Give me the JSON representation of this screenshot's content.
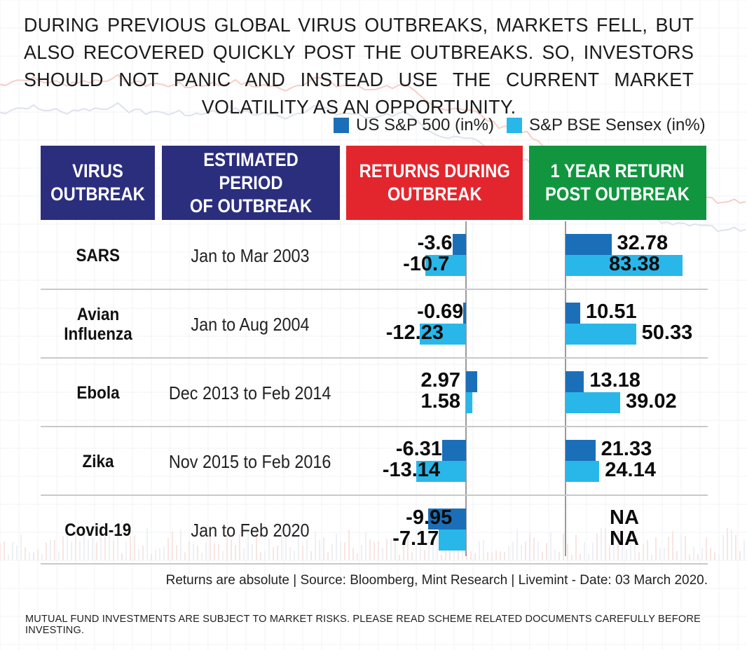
{
  "headline": "DURING PREVIOUS GLOBAL VIRUS OUTBREAKS, MARKETS FELL, BUT ALSO RECOVERED QUICKLY POST THE OUTBREAKS. SO, INVESTORS SHOULD NOT PANIC AND INSTEAD USE THE CURRENT MARKET VOLATILITY AS AN OPPORTUNITY.",
  "legend": {
    "us": {
      "label": "US S&P 500 (in%)",
      "color": "#1b6fb8"
    },
    "bse": {
      "label": "S&P BSE Sensex (in%)",
      "color": "#29b7ea"
    }
  },
  "headers": {
    "virus": {
      "line1": "VIRUS",
      "line2": "OUTBREAK",
      "color": "#2b2e7d"
    },
    "period": {
      "line1": "ESTIMATED PERIOD",
      "line2": "OF OUTBREAK",
      "color": "#2b2e7d"
    },
    "returns": {
      "line1": "RETURNS DURING",
      "line2": "OUTBREAK",
      "color": "#e3262d"
    },
    "post": {
      "line1": "1 YEAR RETURN",
      "line2": "POST OUTBREAK",
      "color": "#11963f"
    }
  },
  "chart_data": {
    "type": "bar",
    "categories": [
      "SARS",
      "Avian Influenza",
      "Ebola",
      "Zika",
      "Covid-19"
    ],
    "periods": [
      "Jan to Mar 2003",
      "Jan to Aug 2004",
      "Dec 2013 to Feb 2014",
      "Nov 2015 to Feb 2016",
      "Jan to Feb 2020"
    ],
    "series": [
      {
        "name": "US S&P 500 (in%)",
        "group": "RETURNS DURING OUTBREAK",
        "values": [
          -3.6,
          -0.69,
          2.97,
          -6.31,
          -9.95
        ]
      },
      {
        "name": "S&P BSE Sensex (in%)",
        "group": "RETURNS DURING OUTBREAK",
        "values": [
          -10.7,
          -12.23,
          1.58,
          -13.14,
          -7.17
        ]
      },
      {
        "name": "US S&P 500 (in%)",
        "group": "1 YEAR RETURN POST OUTBREAK",
        "values": [
          32.78,
          10.51,
          13.18,
          21.33,
          null
        ]
      },
      {
        "name": "S&P BSE Sensex (in%)",
        "group": "1 YEAR RETURN POST OUTBREAK",
        "values": [
          83.38,
          50.33,
          39.02,
          24.14,
          null
        ]
      }
    ],
    "labels": {
      "during_us": [
        "-3.6",
        "-0.69",
        "2.97",
        "-6.31",
        "-9.95"
      ],
      "during_bse": [
        "-10.7",
        "-12.23",
        "1.58",
        "-13.14",
        "-7.17"
      ],
      "post_us": [
        "32.78",
        "10.51",
        "13.18",
        "21.33",
        "NA"
      ],
      "post_bse": [
        "83.38",
        "50.33",
        "39.02",
        "24.14",
        "NA"
      ]
    }
  },
  "footnote": "Returns are absolute | Source: Bloomberg, Mint Research | Livemint - Date: 03 March 2020.",
  "disclaimer": "MUTUAL FUND INVESTMENTS ARE SUBJECT TO MARKET RISKS. PLEASE READ SCHEME RELATED DOCUMENTS CAREFULLY BEFORE INVESTING."
}
